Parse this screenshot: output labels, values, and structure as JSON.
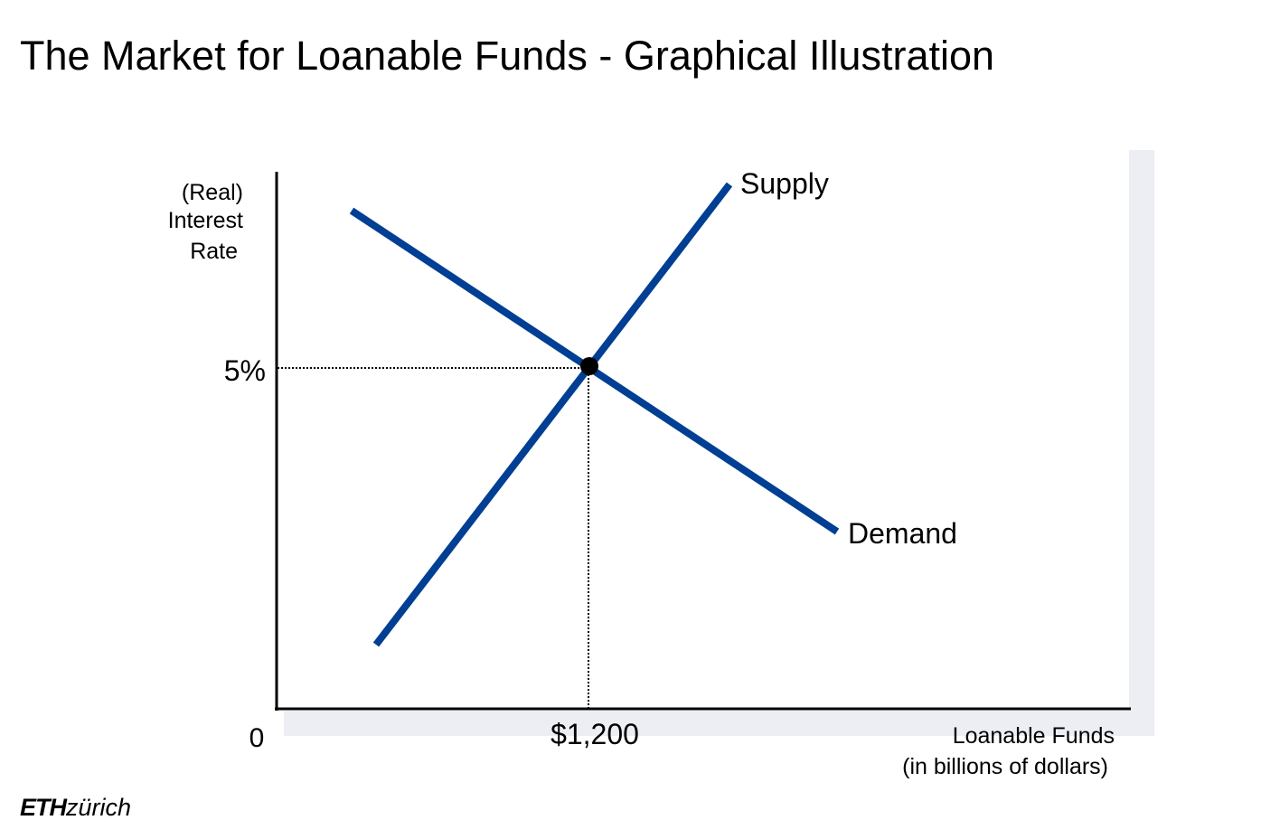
{
  "title": "The Market for Loanable Funds - Graphical Illustration",
  "logo": {
    "eth": "ETH",
    "zurich": "zürich"
  },
  "chart_data": {
    "type": "line",
    "ylabel_lines": [
      "(Real)",
      "Interest",
      "Rate"
    ],
    "xlabel_lines": [
      "Loanable Funds",
      "(in billions of dollars)"
    ],
    "origin_label": "0",
    "equilibrium": {
      "x_label": "$1,200",
      "y_label": "5%"
    },
    "series": [
      {
        "name": "Supply"
      },
      {
        "name": "Demand"
      }
    ],
    "colors": {
      "curve": "#003f93",
      "axis": "#000000",
      "shadow": "#eceef4"
    }
  }
}
